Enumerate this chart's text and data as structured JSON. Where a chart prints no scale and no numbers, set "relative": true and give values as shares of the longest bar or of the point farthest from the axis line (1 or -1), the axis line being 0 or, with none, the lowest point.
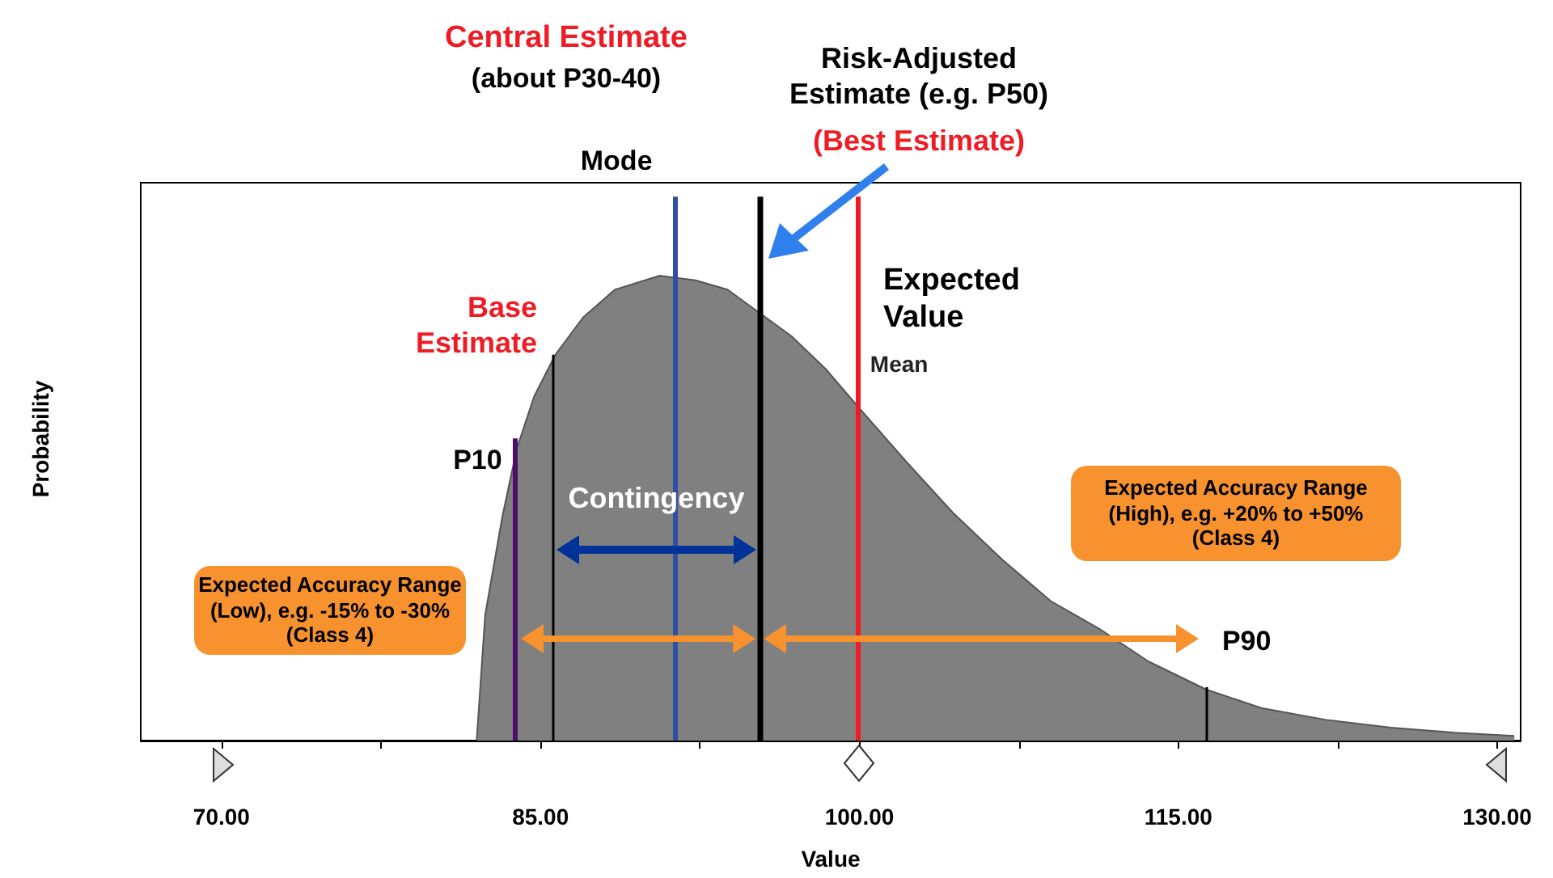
{
  "chart_data": {
    "type": "area",
    "relative": true,
    "xlabel": "Value",
    "ylabel": "Probability",
    "color": "#808080",
    "x": [
      82.0,
      82.4,
      83.2,
      83.9,
      84.7,
      85.7,
      87.0,
      88.5,
      90.6,
      92.3,
      93.8,
      95.3,
      96.8,
      98.4,
      99.9,
      102.2,
      104.4,
      106.7,
      109.0,
      111.3,
      113.6,
      116.3,
      118.9,
      121.9,
      125.0,
      128.0,
      130.8
    ],
    "values": [
      0,
      0.27,
      0.48,
      0.63,
      0.74,
      0.83,
      0.91,
      0.97,
      1.0,
      0.99,
      0.97,
      0.92,
      0.87,
      0.8,
      0.72,
      0.6,
      0.49,
      0.39,
      0.3,
      0.24,
      0.17,
      0.11,
      0.07,
      0.045,
      0.028,
      0.017,
      0.01
    ],
    "xlim": [
      66.2,
      131.1
    ],
    "xticks": [
      {
        "value": 70,
        "label": "70.00"
      },
      {
        "value": 77.5,
        "label": null
      },
      {
        "value": 85,
        "label": "85.00"
      },
      {
        "value": 92.5,
        "label": null
      },
      {
        "value": 100,
        "label": "100.00"
      },
      {
        "value": 107.5,
        "label": null
      },
      {
        "value": 115,
        "label": "115.00"
      },
      {
        "value": 122.5,
        "label": null
      },
      {
        "value": 130,
        "label": "130.00"
      }
    ],
    "ref_lines": [
      {
        "axis": "x",
        "value": 83.8,
        "label": "P10",
        "color": "#4b0f6b"
      },
      {
        "axis": "x",
        "value": 85.6,
        "label": "Base Estimate",
        "color": "#000000"
      },
      {
        "axis": "x",
        "value": 91.3,
        "label": "Mode",
        "color": "#2e4fa5"
      },
      {
        "axis": "x",
        "value": 95.3,
        "color": "#000000"
      },
      {
        "axis": "x",
        "value": 99.9,
        "label": "Mean",
        "color": "#ee1c24"
      },
      {
        "axis": "x",
        "value": 116.3,
        "label": "P90",
        "color": "#000000"
      }
    ],
    "annotations": [
      "Central Estimate",
      "(about P30-40)",
      "Risk-Adjusted Estimate (e.g. P50)",
      "(Best Estimate)",
      "Expected Value",
      "Contingency",
      "Expected Accuracy Range (Low), e.g. -15% to -30% (Class 4)",
      "Expected Accuracy Range (High), e.g. +20% to +50% (Class 4)"
    ]
  }
}
